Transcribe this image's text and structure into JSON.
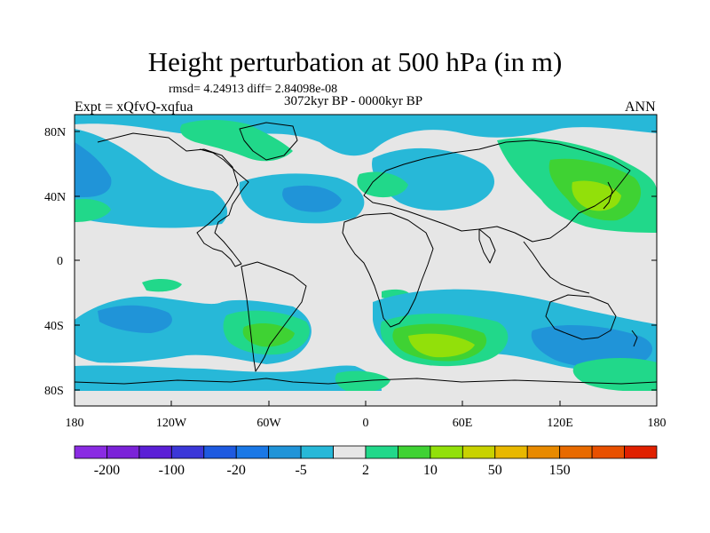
{
  "title": "Height perturbation at 500 hPa (in m)",
  "stats": "rmsd= 4.24913 diff= 2.84098e-08",
  "period": "3072kyr BP - 0000kyr BP",
  "experiment": "Expt = xQfvQ-xqfua",
  "season": "ANN",
  "map": {
    "projection": "cylindrical-equidistant",
    "lon_range": [
      -180,
      180
    ],
    "lat_range": [
      -90,
      90
    ],
    "field_colors": {
      "land_outline": "#000000",
      "neutral": "#e6e6e6"
    }
  },
  "axes": {
    "lat_ticks": [
      {
        "label": "80N",
        "lat": 80
      },
      {
        "label": "40N",
        "lat": 40
      },
      {
        "label": "0",
        "lat": 0
      },
      {
        "label": "40S",
        "lat": -40
      },
      {
        "label": "80S",
        "lat": -80
      }
    ],
    "lon_ticks": [
      {
        "label": "180",
        "lon": -180
      },
      {
        "label": "120W",
        "lon": -120
      },
      {
        "label": "60W",
        "lon": -60
      },
      {
        "label": "0",
        "lon": 0
      },
      {
        "label": "60E",
        "lon": 60
      },
      {
        "label": "120E",
        "lon": 120
      },
      {
        "label": "180",
        "lon": 180
      }
    ]
  },
  "colorbar": {
    "colors": [
      "#8a2be2",
      "#7b22d8",
      "#5b1fd6",
      "#3b37d8",
      "#1e5ae0",
      "#1a78e6",
      "#2094d8",
      "#27b8d8",
      "#e6e6e6",
      "#21d88a",
      "#3fd233",
      "#92e00a",
      "#c8d200",
      "#e8b800",
      "#e88a00",
      "#e86a00",
      "#e85000",
      "#e02000"
    ],
    "labels": [
      {
        "text": "-200",
        "boundary": 1
      },
      {
        "text": "-100",
        "boundary": 3
      },
      {
        "text": "-20",
        "boundary": 5
      },
      {
        "text": "-5",
        "boundary": 7
      },
      {
        "text": "2",
        "boundary": 9
      },
      {
        "text": "10",
        "boundary": 11
      },
      {
        "text": "50",
        "boundary": 13
      },
      {
        "text": "150",
        "boundary": 15
      }
    ]
  }
}
